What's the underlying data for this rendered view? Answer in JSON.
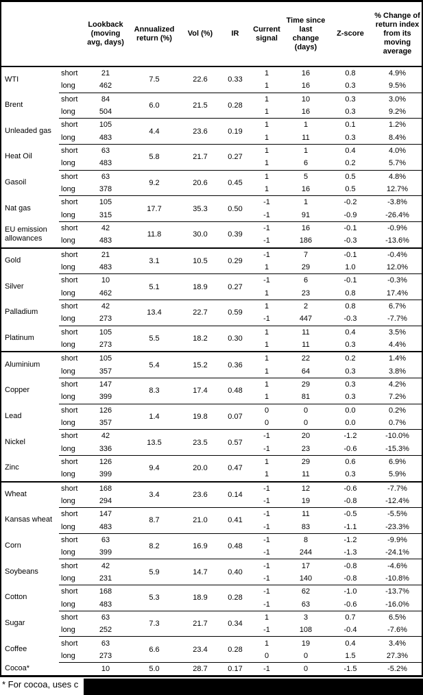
{
  "page": {
    "background": "#ffffff",
    "text_color": "#000000",
    "footnote_visible_text": "* For cocoa, uses c"
  },
  "table": {
    "column_headers": [
      "Lookback (moving avg, days)",
      "Annualized return (%)",
      "Vol (%)",
      "IR",
      "Current signal",
      "Time since last change (days)",
      "Z-score",
      "% Change of return index from its moving average"
    ],
    "groups": [
      {
        "name": "WTI",
        "section_start": false,
        "annualized_return": "7.5",
        "vol": "22.6",
        "ir": "0.33",
        "rows": [
          {
            "horizon": "short",
            "lookback": "21",
            "current_signal": "1",
            "time_since_change": "16",
            "z_score": "0.8",
            "pct_change": "4.9%"
          },
          {
            "horizon": "long",
            "lookback": "462",
            "current_signal": "1",
            "time_since_change": "16",
            "z_score": "0.3",
            "pct_change": "9.5%"
          }
        ]
      },
      {
        "name": "Brent",
        "section_start": false,
        "annualized_return": "6.0",
        "vol": "21.5",
        "ir": "0.28",
        "rows": [
          {
            "horizon": "short",
            "lookback": "84",
            "current_signal": "1",
            "time_since_change": "10",
            "z_score": "0.3",
            "pct_change": "3.0%"
          },
          {
            "horizon": "long",
            "lookback": "504",
            "current_signal": "1",
            "time_since_change": "16",
            "z_score": "0.3",
            "pct_change": "9.2%"
          }
        ]
      },
      {
        "name": "Unleaded gas",
        "section_start": false,
        "annualized_return": "4.4",
        "vol": "23.6",
        "ir": "0.19",
        "rows": [
          {
            "horizon": "short",
            "lookback": "105",
            "current_signal": "1",
            "time_since_change": "1",
            "z_score": "0.1",
            "pct_change": "1.2%"
          },
          {
            "horizon": "long",
            "lookback": "483",
            "current_signal": "1",
            "time_since_change": "11",
            "z_score": "0.3",
            "pct_change": "8.4%"
          }
        ]
      },
      {
        "name": "Heat Oil",
        "section_start": false,
        "annualized_return": "5.8",
        "vol": "21.7",
        "ir": "0.27",
        "rows": [
          {
            "horizon": "short",
            "lookback": "63",
            "current_signal": "1",
            "time_since_change": "1",
            "z_score": "0.4",
            "pct_change": "4.0%"
          },
          {
            "horizon": "long",
            "lookback": "483",
            "current_signal": "1",
            "time_since_change": "6",
            "z_score": "0.2",
            "pct_change": "5.7%"
          }
        ]
      },
      {
        "name": "Gasoil",
        "section_start": false,
        "annualized_return": "9.2",
        "vol": "20.6",
        "ir": "0.45",
        "rows": [
          {
            "horizon": "short",
            "lookback": "63",
            "current_signal": "1",
            "time_since_change": "5",
            "z_score": "0.5",
            "pct_change": "4.8%"
          },
          {
            "horizon": "long",
            "lookback": "378",
            "current_signal": "1",
            "time_since_change": "16",
            "z_score": "0.5",
            "pct_change": "12.7%"
          }
        ]
      },
      {
        "name": "Nat gas",
        "section_start": false,
        "annualized_return": "17.7",
        "vol": "35.3",
        "ir": "0.50",
        "rows": [
          {
            "horizon": "short",
            "lookback": "105",
            "current_signal": "-1",
            "time_since_change": "1",
            "z_score": "-0.2",
            "pct_change": "-3.8%"
          },
          {
            "horizon": "long",
            "lookback": "315",
            "current_signal": "-1",
            "time_since_change": "91",
            "z_score": "-0.9",
            "pct_change": "-26.4%"
          }
        ]
      },
      {
        "name": "EU emission allowances",
        "section_start": false,
        "annualized_return": "11.8",
        "vol": "30.0",
        "ir": "0.39",
        "rows": [
          {
            "horizon": "short",
            "lookback": "42",
            "current_signal": "-1",
            "time_since_change": "16",
            "z_score": "-0.1",
            "pct_change": "-0.9%"
          },
          {
            "horizon": "long",
            "lookback": "483",
            "current_signal": "-1",
            "time_since_change": "186",
            "z_score": "-0.3",
            "pct_change": "-13.6%"
          }
        ]
      },
      {
        "name": "Gold",
        "section_start": true,
        "annualized_return": "3.1",
        "vol": "10.5",
        "ir": "0.29",
        "rows": [
          {
            "horizon": "short",
            "lookback": "21",
            "current_signal": "-1",
            "time_since_change": "7",
            "z_score": "-0.1",
            "pct_change": "-0.4%"
          },
          {
            "horizon": "long",
            "lookback": "483",
            "current_signal": "1",
            "time_since_change": "29",
            "z_score": "1.0",
            "pct_change": "12.0%"
          }
        ]
      },
      {
        "name": "Silver",
        "section_start": false,
        "annualized_return": "5.1",
        "vol": "18.9",
        "ir": "0.27",
        "rows": [
          {
            "horizon": "short",
            "lookback": "10",
            "current_signal": "-1",
            "time_since_change": "6",
            "z_score": "-0.1",
            "pct_change": "-0.3%"
          },
          {
            "horizon": "long",
            "lookback": "462",
            "current_signal": "1",
            "time_since_change": "23",
            "z_score": "0.8",
            "pct_change": "17.4%"
          }
        ]
      },
      {
        "name": "Palladium",
        "section_start": false,
        "annualized_return": "13.4",
        "vol": "22.7",
        "ir": "0.59",
        "rows": [
          {
            "horizon": "short",
            "lookback": "42",
            "current_signal": "1",
            "time_since_change": "2",
            "z_score": "0.8",
            "pct_change": "6.7%"
          },
          {
            "horizon": "long",
            "lookback": "273",
            "current_signal": "-1",
            "time_since_change": "447",
            "z_score": "-0.3",
            "pct_change": "-7.7%"
          }
        ]
      },
      {
        "name": "Platinum",
        "section_start": false,
        "annualized_return": "5.5",
        "vol": "18.2",
        "ir": "0.30",
        "rows": [
          {
            "horizon": "short",
            "lookback": "105",
            "current_signal": "1",
            "time_since_change": "11",
            "z_score": "0.4",
            "pct_change": "3.5%"
          },
          {
            "horizon": "long",
            "lookback": "273",
            "current_signal": "1",
            "time_since_change": "11",
            "z_score": "0.3",
            "pct_change": "4.4%"
          }
        ]
      },
      {
        "name": "Aluminium",
        "section_start": true,
        "annualized_return": "5.4",
        "vol": "15.2",
        "ir": "0.36",
        "rows": [
          {
            "horizon": "short",
            "lookback": "105",
            "current_signal": "1",
            "time_since_change": "22",
            "z_score": "0.2",
            "pct_change": "1.4%"
          },
          {
            "horizon": "long",
            "lookback": "357",
            "current_signal": "1",
            "time_since_change": "64",
            "z_score": "0.3",
            "pct_change": "3.8%"
          }
        ]
      },
      {
        "name": "Copper",
        "section_start": false,
        "annualized_return": "8.3",
        "vol": "17.4",
        "ir": "0.48",
        "rows": [
          {
            "horizon": "short",
            "lookback": "147",
            "current_signal": "1",
            "time_since_change": "29",
            "z_score": "0.3",
            "pct_change": "4.2%"
          },
          {
            "horizon": "long",
            "lookback": "399",
            "current_signal": "1",
            "time_since_change": "81",
            "z_score": "0.3",
            "pct_change": "7.2%"
          }
        ]
      },
      {
        "name": "Lead",
        "section_start": false,
        "annualized_return": "1.4",
        "vol": "19.8",
        "ir": "0.07",
        "rows": [
          {
            "horizon": "short",
            "lookback": "126",
            "current_signal": "0",
            "time_since_change": "0",
            "z_score": "0.0",
            "pct_change": "0.2%"
          },
          {
            "horizon": "long",
            "lookback": "357",
            "current_signal": "0",
            "time_since_change": "0",
            "z_score": "0.0",
            "pct_change": "0.7%"
          }
        ]
      },
      {
        "name": "Nickel",
        "section_start": false,
        "annualized_return": "13.5",
        "vol": "23.5",
        "ir": "0.57",
        "rows": [
          {
            "horizon": "short",
            "lookback": "42",
            "current_signal": "-1",
            "time_since_change": "20",
            "z_score": "-1.2",
            "pct_change": "-10.0%"
          },
          {
            "horizon": "long",
            "lookback": "336",
            "current_signal": "-1",
            "time_since_change": "23",
            "z_score": "-0.6",
            "pct_change": "-15.3%"
          }
        ]
      },
      {
        "name": "Zinc",
        "section_start": false,
        "annualized_return": "9.4",
        "vol": "20.0",
        "ir": "0.47",
        "rows": [
          {
            "horizon": "short",
            "lookback": "126",
            "current_signal": "1",
            "time_since_change": "29",
            "z_score": "0.6",
            "pct_change": "6.9%"
          },
          {
            "horizon": "long",
            "lookback": "399",
            "current_signal": "1",
            "time_since_change": "11",
            "z_score": "0.3",
            "pct_change": "5.9%"
          }
        ]
      },
      {
        "name": "Wheat",
        "section_start": true,
        "annualized_return": "3.4",
        "vol": "23.6",
        "ir": "0.14",
        "rows": [
          {
            "horizon": "short",
            "lookback": "168",
            "current_signal": "-1",
            "time_since_change": "12",
            "z_score": "-0.6",
            "pct_change": "-7.7%"
          },
          {
            "horizon": "long",
            "lookback": "294",
            "current_signal": "-1",
            "time_since_change": "19",
            "z_score": "-0.8",
            "pct_change": "-12.4%"
          }
        ]
      },
      {
        "name": "Kansas wheat",
        "section_start": false,
        "annualized_return": "8.7",
        "vol": "21.0",
        "ir": "0.41",
        "rows": [
          {
            "horizon": "short",
            "lookback": "147",
            "current_signal": "-1",
            "time_since_change": "11",
            "z_score": "-0.5",
            "pct_change": "-5.5%"
          },
          {
            "horizon": "long",
            "lookback": "483",
            "current_signal": "-1",
            "time_since_change": "83",
            "z_score": "-1.1",
            "pct_change": "-23.3%"
          }
        ]
      },
      {
        "name": "Corn",
        "section_start": false,
        "annualized_return": "8.2",
        "vol": "16.9",
        "ir": "0.48",
        "rows": [
          {
            "horizon": "short",
            "lookback": "63",
            "current_signal": "-1",
            "time_since_change": "8",
            "z_score": "-1.2",
            "pct_change": "-9.9%"
          },
          {
            "horizon": "long",
            "lookback": "399",
            "current_signal": "-1",
            "time_since_change": "244",
            "z_score": "-1.3",
            "pct_change": "-24.1%"
          }
        ]
      },
      {
        "name": "Soybeans",
        "section_start": false,
        "annualized_return": "5.9",
        "vol": "14.7",
        "ir": "0.40",
        "rows": [
          {
            "horizon": "short",
            "lookback": "42",
            "current_signal": "-1",
            "time_since_change": "17",
            "z_score": "-0.8",
            "pct_change": "-4.6%"
          },
          {
            "horizon": "long",
            "lookback": "231",
            "current_signal": "-1",
            "time_since_change": "140",
            "z_score": "-0.8",
            "pct_change": "-10.8%"
          }
        ]
      },
      {
        "name": "Cotton",
        "section_start": false,
        "annualized_return": "5.3",
        "vol": "18.9",
        "ir": "0.28",
        "rows": [
          {
            "horizon": "short",
            "lookback": "168",
            "current_signal": "-1",
            "time_since_change": "62",
            "z_score": "-1.0",
            "pct_change": "-13.7%"
          },
          {
            "horizon": "long",
            "lookback": "483",
            "current_signal": "-1",
            "time_since_change": "63",
            "z_score": "-0.6",
            "pct_change": "-16.0%"
          }
        ]
      },
      {
        "name": "Sugar",
        "section_start": false,
        "annualized_return": "7.3",
        "vol": "21.7",
        "ir": "0.34",
        "rows": [
          {
            "horizon": "short",
            "lookback": "63",
            "current_signal": "1",
            "time_since_change": "3",
            "z_score": "0.7",
            "pct_change": "6.5%"
          },
          {
            "horizon": "long",
            "lookback": "252",
            "current_signal": "-1",
            "time_since_change": "108",
            "z_score": "-0.4",
            "pct_change": "-7.6%"
          }
        ]
      },
      {
        "name": "Coffee",
        "section_start": false,
        "annualized_return": "6.6",
        "vol": "23.4",
        "ir": "0.28",
        "rows": [
          {
            "horizon": "short",
            "lookback": "63",
            "current_signal": "1",
            "time_since_change": "19",
            "z_score": "0.4",
            "pct_change": "3.4%"
          },
          {
            "horizon": "long",
            "lookback": "273",
            "current_signal": "0",
            "time_since_change": "0",
            "z_score": "1.5",
            "pct_change": "27.3%"
          }
        ]
      },
      {
        "name": "Cocoa*",
        "section_start": false,
        "annualized_return": "5.0",
        "vol": "28.7",
        "ir": "0.17",
        "rows": [
          {
            "horizon": "",
            "lookback": "10",
            "current_signal": "-1",
            "time_since_change": "0",
            "z_score": "-1.5",
            "pct_change": "-5.2%"
          }
        ]
      }
    ]
  }
}
